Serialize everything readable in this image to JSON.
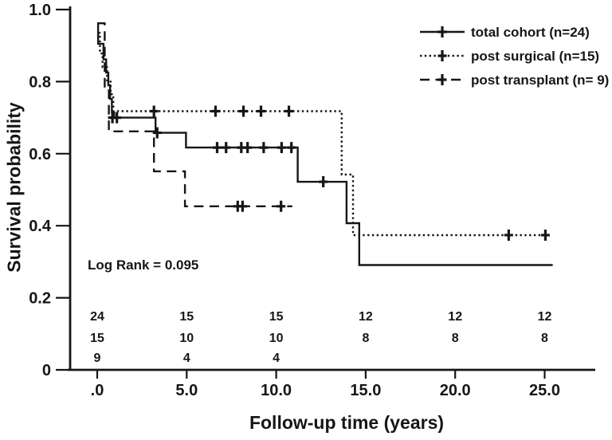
{
  "figure": {
    "background": "#ffffff",
    "ink_color": "#161616",
    "y_axis_title": "Survival probability",
    "x_axis_title": "Follow-up time (years)",
    "annotation": "Log Rank = 0.095"
  },
  "chart_data": {
    "type": "line",
    "subtype": "kaplan-meier-step-curves",
    "title": "",
    "xlabel": "Follow-up time (years)",
    "ylabel": "Survival probability",
    "xlim": [
      -1.6,
      27.8
    ],
    "ylim": [
      0,
      1.0
    ],
    "grid": false,
    "legend_position": "top-right",
    "annotation": "Log Rank = 0.095",
    "xticks": [
      {
        "value": 0,
        "label": ".0"
      },
      {
        "value": 5,
        "label": "5.0"
      },
      {
        "value": 10,
        "label": "10.0"
      },
      {
        "value": 15,
        "label": "15.0"
      },
      {
        "value": 20,
        "label": "20.0"
      },
      {
        "value": 25,
        "label": "25.0"
      }
    ],
    "yticks": [
      {
        "value": 0,
        "label": "0"
      },
      {
        "value": 0.2,
        "label": "0.2"
      },
      {
        "value": 0.4,
        "label": "0.4"
      },
      {
        "value": 0.6,
        "label": "0.6"
      },
      {
        "value": 0.8,
        "label": "0.8"
      },
      {
        "value": 1.0,
        "label": "1.0"
      }
    ],
    "series": [
      {
        "name": "total cohort (n=24)",
        "style": "solid",
        "start": [
          0,
          0.96
        ],
        "steps": [
          [
            0.05,
            0.905
          ],
          [
            0.35,
            0.862
          ],
          [
            0.5,
            0.825
          ],
          [
            0.62,
            0.79
          ],
          [
            0.72,
            0.752
          ],
          [
            0.82,
            0.715
          ],
          [
            0.95,
            0.7
          ],
          [
            3.26,
            0.658
          ],
          [
            4.96,
            0.617
          ],
          [
            11.2,
            0.522
          ],
          [
            13.93,
            0.407
          ],
          [
            14.64,
            0.291
          ]
        ],
        "end_x": 25.45,
        "censors": [
          [
            0.85,
            0.7
          ],
          [
            1.1,
            0.7
          ],
          [
            3.35,
            0.658
          ],
          [
            6.7,
            0.617
          ],
          [
            7.2,
            0.617
          ],
          [
            8.05,
            0.617
          ],
          [
            8.4,
            0.617
          ],
          [
            9.3,
            0.617
          ],
          [
            10.3,
            0.617
          ],
          [
            10.85,
            0.617
          ],
          [
            12.63,
            0.522
          ]
        ]
      },
      {
        "name": "post surgical (n=15)",
        "style": "dotted",
        "start": [
          0.05,
          0.935
        ],
        "steps": [
          [
            0.15,
            0.878
          ],
          [
            0.3,
            0.84
          ],
          [
            0.55,
            0.8
          ],
          [
            0.75,
            0.765
          ],
          [
            0.9,
            0.718
          ],
          [
            13.66,
            0.542
          ],
          [
            14.29,
            0.374
          ]
        ],
        "end_x": 25.1,
        "censors": [
          [
            3.17,
            0.718
          ],
          [
            6.61,
            0.718
          ],
          [
            8.17,
            0.718
          ],
          [
            9.15,
            0.718
          ],
          [
            10.71,
            0.718
          ],
          [
            22.99,
            0.374
          ],
          [
            25.04,
            0.374
          ]
        ]
      },
      {
        "name": "post transplant (n= 9)",
        "style": "dashed",
        "start": [
          0,
          0.962
        ],
        "steps": [
          [
            0.42,
            0.78
          ],
          [
            0.65,
            0.662
          ],
          [
            3.17,
            0.551
          ],
          [
            4.9,
            0.454
          ]
        ],
        "end_x": 10.9,
        "censors": [
          [
            7.85,
            0.454
          ],
          [
            8.12,
            0.454
          ],
          [
            10.27,
            0.454
          ]
        ]
      }
    ],
    "at_risk_table": {
      "x_positions": [
        0,
        5,
        10,
        15,
        20,
        25
      ],
      "rows": [
        {
          "series": "total cohort",
          "counts": [
            "24",
            "15",
            "15",
            "12",
            "12",
            "12"
          ]
        },
        {
          "series": "post surgical",
          "counts": [
            "15",
            "10",
            "10",
            "8",
            "8",
            "8"
          ]
        },
        {
          "series": "post transplant",
          "counts": [
            "9",
            "4",
            "4",
            "",
            "",
            ""
          ]
        }
      ]
    }
  }
}
